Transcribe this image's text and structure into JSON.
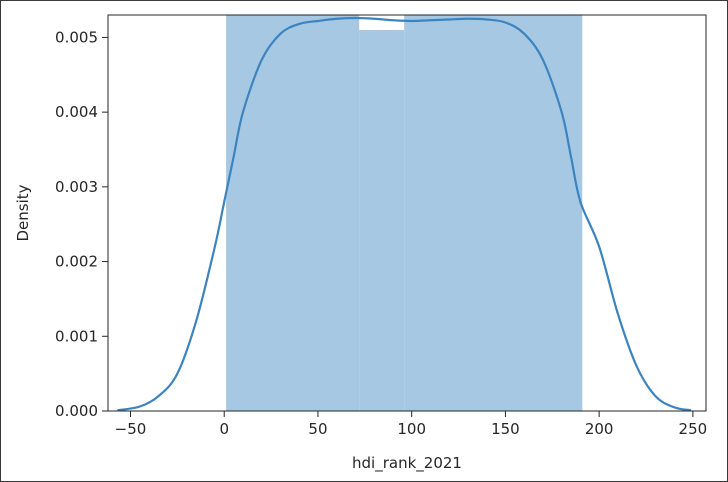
{
  "chart_data": {
    "type": "histogram",
    "title": "",
    "xlabel": "hdi_rank_2021",
    "ylabel": "Density",
    "xlim": [
      -62,
      257
    ],
    "ylim": [
      0,
      0.0053
    ],
    "xticks": [
      -50,
      0,
      50,
      100,
      150,
      200,
      250
    ],
    "xtick_labels": [
      "−50",
      "0",
      "50",
      "100",
      "150",
      "200",
      "250"
    ],
    "yticks": [
      0,
      0.001,
      0.002,
      0.003,
      0.004,
      0.005
    ],
    "ytick_labels": [
      "0.000",
      "0.001",
      "0.002",
      "0.003",
      "0.004",
      "0.005"
    ],
    "grid": false,
    "histogram": {
      "bins": [
        {
          "x0": 1,
          "x1": 72,
          "density": 0.0053
        },
        {
          "x0": 72,
          "x1": 96,
          "density": 0.0051
        },
        {
          "x0": 96,
          "x1": 191,
          "density": 0.0053
        }
      ],
      "color": "#a6c8e3"
    },
    "kde": {
      "color": "#3c84bf",
      "x": [
        -57,
        -45,
        -35,
        -25,
        -15,
        -5,
        0,
        5,
        10,
        20,
        30,
        40,
        50,
        60,
        70,
        80,
        90,
        100,
        110,
        120,
        130,
        140,
        150,
        160,
        170,
        180,
        185,
        190,
        200,
        210,
        220,
        230,
        240,
        249
      ],
      "y": [
        1e-05,
        6e-05,
        0.0002,
        0.0005,
        0.0012,
        0.0022,
        0.0028,
        0.0034,
        0.004,
        0.0047,
        0.00505,
        0.00518,
        0.00522,
        0.00525,
        0.00526,
        0.00525,
        0.00523,
        0.00522,
        0.00523,
        0.00524,
        0.00525,
        0.00524,
        0.0052,
        0.00505,
        0.0047,
        0.004,
        0.0034,
        0.0028,
        0.0022,
        0.0013,
        0.0006,
        0.0002,
        5e-05,
        1e-05
      ]
    }
  }
}
